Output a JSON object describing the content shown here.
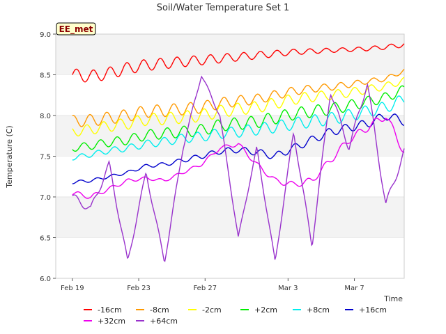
{
  "chart_data": {
    "type": "line",
    "title": "Soil/Water Temperature Set 1",
    "xlabel": "Time",
    "ylabel": "Temperature (C)",
    "annotation": "EE_met",
    "x_start": "2000-02-19",
    "x_end": "2000-03-10",
    "xlim": [
      "2000-02-18",
      "2000-03-10"
    ],
    "ylim": [
      6.0,
      9.0
    ],
    "yticks": [
      "6.0",
      "6.5",
      "7.0",
      "7.5",
      "8.0",
      "8.5",
      "9.0"
    ],
    "xticks": [
      {
        "date": "2000-02-19",
        "label": "Feb 19"
      },
      {
        "date": "2000-02-23",
        "label": "Feb 23"
      },
      {
        "date": "2000-02-27",
        "label": "Feb 27"
      },
      {
        "date": "2000-03-03",
        "label": "Mar 3"
      },
      {
        "date": "2000-03-07",
        "label": "Mar 7"
      }
    ],
    "grid": "horizontal bands",
    "legend_position": "bottom",
    "series": [
      {
        "name": "-16cm",
        "color": "#ff0000",
        "values": [
          8.5,
          8.48,
          8.52,
          8.58,
          8.62,
          8.64,
          8.66,
          8.68,
          8.7,
          8.72,
          8.74,
          8.76,
          8.78,
          8.79,
          8.8,
          8.81,
          8.82,
          8.84,
          8.87
        ]
      },
      {
        "name": "-8cm",
        "color": "#ff9900",
        "values": [
          7.93,
          7.94,
          7.97,
          8.0,
          8.05,
          8.06,
          8.08,
          8.1,
          8.15,
          8.18,
          8.2,
          8.25,
          8.3,
          8.33,
          8.35,
          8.38,
          8.42,
          8.45,
          8.55
        ]
      },
      {
        "name": "-2cm",
        "color": "#ffff00",
        "values": [
          7.8,
          7.83,
          7.87,
          7.9,
          7.95,
          7.96,
          7.98,
          8.0,
          8.05,
          8.08,
          8.1,
          8.15,
          8.2,
          8.23,
          8.25,
          8.28,
          8.32,
          8.36,
          8.43
        ]
      },
      {
        "name": "+2cm",
        "color": "#00ee00",
        "values": [
          7.6,
          7.63,
          7.67,
          7.7,
          7.76,
          7.78,
          7.8,
          7.82,
          7.88,
          7.9,
          7.92,
          7.97,
          8.02,
          8.05,
          8.08,
          8.12,
          8.17,
          8.22,
          8.32
        ]
      },
      {
        "name": "+8cm",
        "color": "#00eeee",
        "values": [
          7.48,
          7.52,
          7.57,
          7.6,
          7.65,
          7.68,
          7.72,
          7.74,
          7.78,
          7.8,
          7.83,
          7.86,
          7.9,
          7.93,
          7.96,
          8.0,
          8.05,
          8.1,
          8.2
        ]
      },
      {
        "name": "+16cm",
        "color": "#0000cc",
        "values": [
          7.18,
          7.2,
          7.25,
          7.3,
          7.38,
          7.4,
          7.45,
          7.5,
          7.56,
          7.58,
          7.55,
          7.5,
          7.6,
          7.7,
          7.8,
          7.85,
          7.9,
          8.0,
          7.93
        ]
      },
      {
        "name": "+32cm",
        "color": "#ee00ee",
        "values": [
          7.05,
          7.0,
          7.1,
          7.2,
          7.23,
          7.2,
          7.3,
          7.4,
          7.6,
          7.65,
          7.4,
          7.2,
          7.15,
          7.2,
          7.45,
          7.7,
          7.85,
          8.0,
          7.55
        ]
      },
      {
        "name": "+64cm",
        "color": "#9933cc",
        "values": [
          7.0,
          6.85,
          7.4,
          6.2,
          7.3,
          6.2,
          7.6,
          8.5,
          8.0,
          6.5,
          7.6,
          6.2,
          7.8,
          6.4,
          8.3,
          7.6,
          8.4,
          6.9,
          7.55
        ]
      }
    ]
  }
}
